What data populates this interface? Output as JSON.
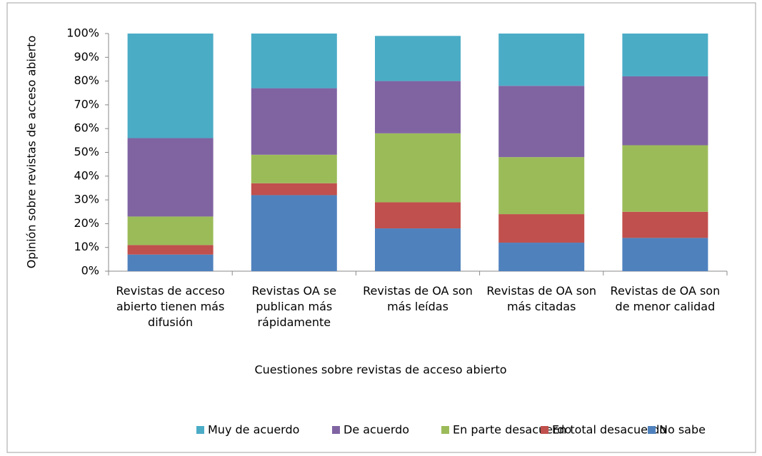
{
  "chart_data": {
    "type": "stacked_bar",
    "categories": [
      "Revistas de acceso abierto tienen más difusión",
      "Revistas OA se publican más rápidamente",
      "Revistas de OA son más leídas",
      "Revistas de OA son más citadas",
      "Revistas de OA son de menor calidad"
    ],
    "series": [
      {
        "name": "No sabe",
        "color": "#4f81bd",
        "values": [
          7,
          32,
          18,
          12,
          14
        ]
      },
      {
        "name": "En total desacuerdo",
        "color": "#c0504d",
        "values": [
          4,
          5,
          11,
          12,
          11
        ]
      },
      {
        "name": "En parte desacuerdo",
        "color": "#9bbb59",
        "values": [
          12,
          12,
          29,
          24,
          28
        ]
      },
      {
        "name": "De acuerdo",
        "color": "#8064a2",
        "values": [
          33,
          28,
          22,
          30,
          29
        ]
      },
      {
        "name": "Muy de acuerdo",
        "color": "#4bacc6",
        "values": [
          44,
          23,
          19,
          22,
          18
        ]
      }
    ],
    "ylim": [
      0,
      100
    ],
    "yticks": [
      {
        "value": 0,
        "label": "0%"
      },
      {
        "value": 10,
        "label": "10%"
      },
      {
        "value": 20,
        "label": "20%"
      },
      {
        "value": 30,
        "label": "30%"
      },
      {
        "value": 40,
        "label": "40%"
      },
      {
        "value": 50,
        "label": "50%"
      },
      {
        "value": 60,
        "label": "60%"
      },
      {
        "value": 70,
        "label": "70%"
      },
      {
        "value": 80,
        "label": "80%"
      },
      {
        "value": 90,
        "label": "90%"
      },
      {
        "value": 100,
        "label": "100%"
      }
    ],
    "xlabel": "Cuestiones sobre revistas de acceso abierto",
    "ylabel": "Opinión sobre revistas de acceso abierto",
    "legend": "bottom"
  }
}
